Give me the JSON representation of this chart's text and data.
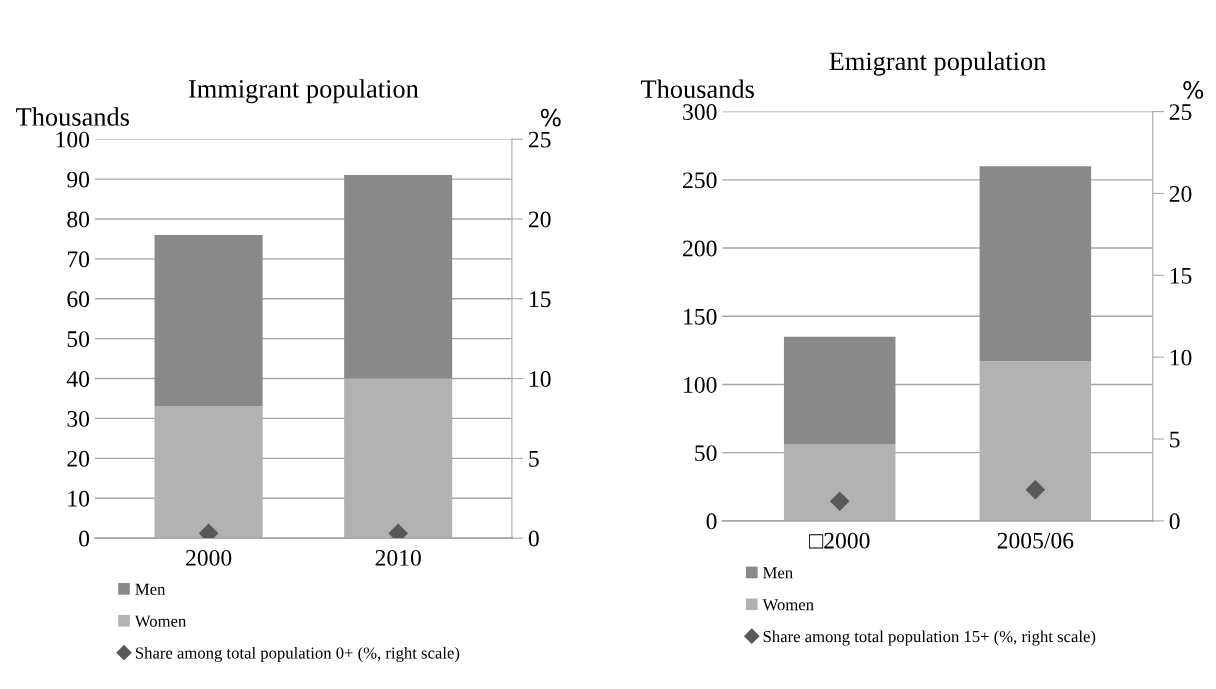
{
  "chart_data": [
    {
      "type": "bar",
      "title": "Immigrant population",
      "ylabel": "Thousands",
      "y2label": "%",
      "categories": [
        "2000",
        "2010"
      ],
      "stacked": true,
      "ylim": [
        0,
        100
      ],
      "yticks": [
        0,
        10,
        20,
        30,
        40,
        50,
        60,
        70,
        80,
        90,
        100
      ],
      "y2lim": [
        0,
        25
      ],
      "y2ticks": [
        0,
        5,
        10,
        15,
        20,
        25
      ],
      "grid": "y",
      "legend": "bottom",
      "series": [
        {
          "name": "Women",
          "color": "#b2b2b2",
          "values": [
            33,
            40
          ]
        },
        {
          "name": "Men",
          "color": "#898989",
          "values": [
            43,
            51
          ]
        },
        {
          "name": "Share among total population 0+ (%, right scale)",
          "type": "scatter",
          "axis": "y2",
          "marker": "diamond",
          "color": "#595959",
          "values": [
            0.3,
            0.3
          ]
        }
      ]
    },
    {
      "type": "bar",
      "title": "Emigrant population",
      "ylabel": "Thousands",
      "y2label": "%",
      "categories": [
        "□2000",
        "2005/06"
      ],
      "stacked": true,
      "ylim": [
        0,
        300
      ],
      "yticks": [
        0,
        50,
        100,
        150,
        200,
        250,
        300
      ],
      "y2lim": [
        0,
        25
      ],
      "y2ticks": [
        0,
        5,
        10,
        15,
        20,
        25
      ],
      "grid": "y",
      "legend": "bottom",
      "series": [
        {
          "name": "Women",
          "color": "#b2b2b2",
          "values": [
            56,
            117
          ]
        },
        {
          "name": "Men",
          "color": "#898989",
          "values": [
            79,
            143
          ]
        },
        {
          "name": "Share among total population 15+ (%, right scale)",
          "type": "scatter",
          "axis": "y2",
          "marker": "diamond",
          "color": "#595959",
          "values": [
            1.2,
            1.9
          ]
        }
      ]
    }
  ]
}
